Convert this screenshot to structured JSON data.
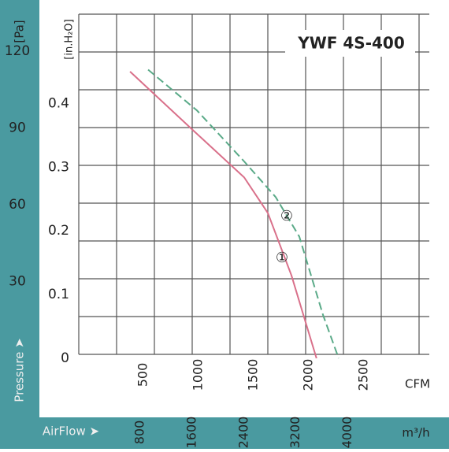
{
  "chart_data": {
    "type": "line",
    "title": "YWF 4S-400",
    "y_label": "[in.H₂O]",
    "y2_label": "[Pa]",
    "y2_title": "Pressure ➤",
    "x_label": "CFM",
    "x2_label": "m³/h",
    "x2_title": "AirFlow ➤",
    "xlim": [
      0,
      3000
    ],
    "xticks": [
      500,
      1000,
      1500,
      2000,
      2500
    ],
    "x2lim": [
      0,
      5097
    ],
    "x2ticks": [
      800,
      1600,
      2400,
      3200,
      4000
    ],
    "ylim": [
      0,
      0.55
    ],
    "yticks": [
      0,
      0.1,
      0.2,
      0.3,
      0.4
    ],
    "y2lim": [
      0,
      137
    ],
    "y2ticks": [
      30,
      60,
      90,
      120
    ],
    "grid": true,
    "series": [
      {
        "name": "①",
        "color": "#d9708a",
        "dash": false,
        "x": [
          379,
          950,
          1414,
          1629,
          1843,
          2070
        ],
        "values": [
          0.45,
          0.358,
          0.284,
          0.228,
          0.13,
          0
        ]
      },
      {
        "name": "②",
        "color": "#5aaa88",
        "dash": true,
        "x": [
          543,
          986,
          1414,
          1700,
          1914,
          2129,
          2271
        ],
        "values": [
          0.453,
          0.389,
          0.309,
          0.253,
          0.191,
          0.068,
          0
        ]
      }
    ]
  }
}
